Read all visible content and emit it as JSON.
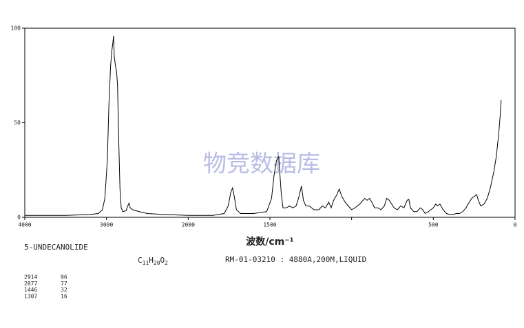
{
  "chart_data": {
    "type": "line",
    "xlabel": "波数/cm⁻¹",
    "x": [
      4000,
      3500,
      3200,
      3100,
      3050,
      3020,
      2990,
      2970,
      2950,
      2935,
      2920,
      2914,
      2905,
      2890,
      2877,
      2865,
      2850,
      2835,
      2820,
      2800,
      2760,
      2740,
      2725,
      2710,
      2680,
      2600,
      2500,
      2300,
      2000,
      1850,
      1780,
      1755,
      1740,
      1729,
      1718,
      1705,
      1680,
      1600,
      1520,
      1490,
      1475,
      1460,
      1446,
      1440,
      1430,
      1420,
      1400,
      1380,
      1360,
      1340,
      1325,
      1307,
      1295,
      1280,
      1260,
      1230,
      1200,
      1180,
      1160,
      1140,
      1125,
      1110,
      1090,
      1076,
      1060,
      1040,
      1020,
      1000,
      980,
      950,
      920,
      905,
      890,
      870,
      860,
      840,
      820,
      800,
      785,
      770,
      755,
      740,
      720,
      700,
      680,
      660,
      650,
      640,
      620,
      600,
      580,
      565,
      550,
      530,
      500,
      485,
      475,
      460,
      440,
      420,
      400,
      380,
      360,
      340,
      320,
      300,
      280,
      265,
      250,
      235,
      225,
      210,
      190,
      170,
      150,
      130,
      115,
      100,
      90,
      85
    ],
    "values": [
      1,
      1,
      1.5,
      2,
      4,
      10,
      30,
      60,
      80,
      88,
      93,
      96,
      85,
      80,
      77,
      70,
      40,
      15,
      5,
      3,
      3.5,
      6,
      7.5,
      5,
      4,
      3,
      2,
      1.5,
      1,
      1,
      2,
      6,
      13,
      15.5,
      11,
      4,
      2,
      2,
      3,
      10,
      22,
      30,
      32,
      24,
      12,
      5,
      5,
      6,
      5,
      6,
      10,
      16.5,
      9,
      6,
      6,
      4,
      4,
      6,
      5,
      8,
      5,
      9,
      12,
      15,
      11,
      8,
      6,
      4,
      5,
      7,
      10,
      9,
      10,
      7,
      5,
      5,
      4,
      6,
      10,
      9,
      7,
      5,
      4,
      6,
      5,
      9,
      9.5,
      5,
      3,
      3,
      5,
      4,
      2,
      3,
      5,
      7,
      6,
      7,
      4,
      2,
      1.5,
      1.5,
      2,
      2,
      3,
      5,
      8,
      10,
      11,
      12,
      9,
      6,
      7,
      10,
      16,
      24,
      32,
      44,
      55,
      62
    ],
    "color": "#000000",
    "xlim": [
      4000,
      0
    ],
    "xticks": [
      4000,
      3000,
      2000,
      1500,
      {
        "value": 1000,
        "label": null
      },
      500,
      0
    ],
    "ylim": [
      0,
      100
    ],
    "yticks": [
      0,
      50,
      100
    ],
    "watermark": "物竞数据库"
  },
  "compound": "5-UNDECANOLIDE",
  "formula_parts": [
    "C",
    "11",
    "H",
    "20",
    "O",
    "2"
  ],
  "conditions": "RM-01-03210 : 4880A,200M,LIQUID",
  "peaks": [
    [
      2914,
      96
    ],
    [
      2877,
      77
    ],
    [
      1446,
      32
    ],
    [
      1307,
      16
    ]
  ]
}
